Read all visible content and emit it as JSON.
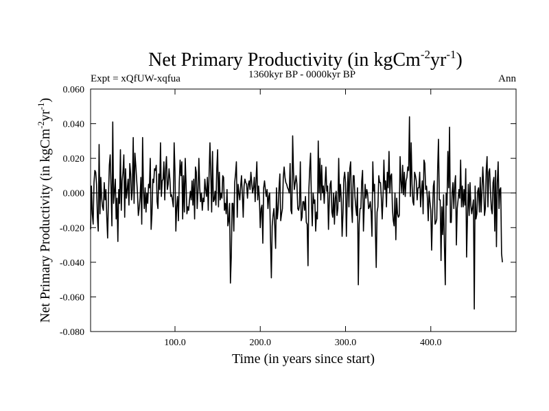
{
  "header": {
    "title_main": "Net Primary Productivity (in kgCm",
    "title_sup1": "-2",
    "title_mid": "yr",
    "title_sup2": "-1",
    "title_end": ")",
    "experiment": "Expt = xQfUW-xqfua",
    "period": "1360kyr BP - 0000kyr BP",
    "season": "Ann"
  },
  "chart_data": {
    "type": "line",
    "title": "Net Primary Productivity (in kgCm-2yr-1)",
    "xlabel": "Time (in years since start)",
    "ylabel_main": "Net Primary Productivity (in kgCm",
    "ylabel_sup1": "-2",
    "ylabel_mid": "yr",
    "ylabel_sup2": "-1",
    "ylabel_end": ")",
    "xlim": [
      1,
      500
    ],
    "ylim": [
      -0.08,
      0.06
    ],
    "xticks": [
      100,
      200,
      300,
      400
    ],
    "xtick_labels": [
      "100.0",
      "200.0",
      "300.0",
      "400.0"
    ],
    "yticks": [
      -0.08,
      -0.06,
      -0.04,
      -0.02,
      0.0,
      0.02,
      0.04,
      0.06
    ],
    "ytick_labels": [
      "-0.080",
      "-0.060",
      "-0.040",
      "-0.020",
      "0.000",
      "0.020",
      "0.040",
      "0.060"
    ],
    "zero_line": 0,
    "series": [
      {
        "name": "Net Primary Productivity",
        "x_start": 1,
        "x_step": 1,
        "values": [
          -0.021,
          0.004,
          -0.012,
          -0.018,
          0.006,
          0.013,
          0.012,
          0.005,
          -0.014,
          -0.022,
          0.028,
          -0.012,
          0.009,
          -0.003,
          -0.008,
          -0.01,
          0.006,
          -0.004,
          0.002,
          -0.014,
          -0.026,
          -0.002,
          0.016,
          0.022,
          0.003,
          -0.019,
          0.041,
          -0.006,
          0.001,
          0.008,
          -0.015,
          -0.003,
          -0.028,
          0.002,
          -0.006,
          0.025,
          -0.01,
          0.007,
          0.012,
          0.022,
          -0.014,
          0.014,
          -0.003,
          0.002,
          0.008,
          -0.007,
          0.017,
          0.011,
          -0.004,
          0.002,
          0.032,
          -0.006,
          0.023,
          0.016,
          0.008,
          0.0,
          -0.013,
          -0.009,
          -0.003,
          0.009,
          -0.018,
          0.032,
          0.002,
          -0.009,
          0.003,
          -0.011,
          0.0,
          -0.006,
          0.005,
          0.003,
          0.02,
          -0.021,
          -0.012,
          0.008,
          0.006,
          0.014,
          0.013,
          0.016,
          -0.005,
          -0.009,
          0.011,
          0.002,
          0.029,
          -0.002,
          0.007,
          0.008,
          0.018,
          -0.004,
          0.014,
          0.021,
          0.002,
          0.005,
          0.014,
          0.008,
          -0.002,
          -0.001,
          -0.004,
          -0.008,
          0.029,
          0.012,
          -0.022,
          -0.008,
          -0.002,
          -0.016,
          0.006,
          0.019,
          0.01,
          0.018,
          -0.015,
          0.01,
          -0.011,
          0.02,
          0.005,
          -0.012,
          -0.008,
          -0.01,
          -0.004,
          0.001,
          -0.004,
          0.007,
          -0.007,
          0.008,
          -0.015,
          0.015,
          0.012,
          -0.009,
          0.001,
          0.02,
          0.003,
          -0.005,
          0.0,
          -0.01,
          -0.003,
          -0.005,
          0.008,
          0.002,
          -0.002,
          0.009,
          -0.01,
          0.011,
          0.029,
          0.011,
          -0.011,
          0.024,
          -0.005,
          -0.004,
          0.001,
          -0.007,
          0.014,
          0.025,
          -0.008,
          0.012,
          -0.004,
          0.0,
          -0.003,
          0.01,
          0.009,
          -0.01,
          -0.006,
          -0.012,
          0.002,
          -0.019,
          -0.016,
          -0.006,
          -0.052,
          -0.037,
          -0.006,
          -0.006,
          -0.022,
          0.006,
          0.011,
          0.018,
          -0.014,
          0.005,
          -0.0,
          -0.004,
          0.004,
          0.01,
          -0.001,
          -0.014,
          0.004,
          0.008,
          0.006,
          0.005,
          -0.003,
          0.005,
          0.007,
          0.002,
          0.012,
          0.006,
          -0.0,
          0.003,
          0.009,
          -0.005,
          0.007,
          0.018,
          -0.004,
          0.004,
          -0.003,
          -0.02,
          -0.009,
          -0.007,
          -0.029,
          0.003,
          0.007,
          0.002,
          -0.002,
          0.002,
          -0.009,
          -0.002,
          0.0,
          -0.027,
          -0.049,
          -0.019,
          -0.013,
          -0.009,
          -0.019,
          -0.032,
          0.003,
          -0.015,
          -0.009,
          0.003,
          0.011,
          -0.016,
          -0.012,
          -0.009,
          0.009,
          0.015,
          0.009,
          0.006,
          0.005,
          0.003,
          0.002,
          -0.0,
          0.017,
          -0.01,
          -0.012,
          0.033,
          0.012,
          0.002,
          0.006,
          0.01,
          0.005,
          -0.009,
          -0.01,
          -0.007,
          0.018,
          -0.016,
          -0.014,
          -0.005,
          -0.005,
          -0.01,
          -0.002,
          -0.017,
          -0.018,
          -0.042,
          0.002,
          0.014,
          0.023,
          -0.005,
          -0.019,
          -0.0,
          -0.006,
          -0.004,
          -0.022,
          -0.011,
          -0.015,
          0.03,
          0.0,
          0.02,
          -0.004,
          0.016,
          -0.0,
          0.004,
          -0.006,
          0.005,
          0.015,
          0.001,
          0.004,
          -0.021,
          -0.004,
          0.005,
          0.007,
          -0.011,
          -0.014,
          -0.0,
          -0.018,
          -0.003,
          0.001,
          -0.013,
          -0.009,
          0.02,
          -0.005,
          0.005,
          -0.003,
          -0.025,
          -0.012,
          0.008,
          0.012,
          0.006,
          -0.025,
          -0.001,
          0.012,
          -0.008,
          0.014,
          0.018,
          -0.008,
          -0.017,
          0.01,
          0.01,
          -0.002,
          -0.008,
          -0.013,
          0.003,
          -0.053,
          -0.018,
          -0.009,
          -0.009,
          0.007,
          0.013,
          -0.022,
          -0.007,
          0.005,
          -0.003,
          0.002,
          -0.001,
          -0.009,
          -0.008,
          -0.005,
          -0.011,
          -0.025,
          0.018,
          0.001,
          0.005,
          -0.021,
          -0.043,
          -0.011,
          -0.008,
          0.01,
          0.006,
          0.006,
          -0.003,
          -0.015,
          -0.002,
          0.019,
          0.002,
          0.007,
          -0.008,
          0.012,
          0.003,
          0.024,
          -0.0,
          0.01,
          0.011,
          -0.009,
          -0.016,
          -0.019,
          -0.0,
          -0.027,
          -0.003,
          -0.012,
          -0.014,
          -0.013,
          0.021,
          0.007,
          0.0,
          0.016,
          -0.001,
          0.012,
          -0.002,
          0.007,
          0.009,
          0.015,
          0.013,
          0.044,
          -0.002,
          0.029,
          0.005,
          -0.005,
          -0.007,
          0.012,
          0.01,
          0.007,
          -0.004,
          0.003,
          0.003,
          0.012,
          -0.008,
          0.001,
          0.007,
          -0.012,
          0.019,
          0.017,
          0.002,
          0.004,
          -0.003,
          -0.016,
          0.001,
          -0.005,
          -0.01,
          -0.033,
          -0.013,
          0.004,
          0.007,
          -0.018,
          -0.017,
          -0.015,
          0.013,
          0.031,
          -0.004,
          -0.004,
          -0.039,
          -0.008,
          -0.024,
          -0.001,
          -0.031,
          -0.053,
          0.0,
          -0.007,
          0.024,
          0.003,
          0.038,
          -0.017,
          -0.017,
          -0.0,
          0.006,
          -0.009,
          0.005,
          0.01,
          -0.03,
          -0.009,
          -0.004,
          0.002,
          -0.003,
          0.019,
          -0.008,
          0.004,
          -0.008,
          0.002,
          -0.007,
          0.014,
          -0.037,
          -0.014,
          0.005,
          -0.013,
          0.006,
          -0.007,
          -0.012,
          -0.008,
          -0.004,
          -0.067,
          0.004,
          -0.015,
          -0.012,
          0.001,
          0.003,
          -0.011,
          0.009,
          -0.011,
          0.001,
          0.015,
          0.004,
          -0.013,
          -0.009,
          0.013,
          0.021,
          -0.008,
          0.012,
          0.014,
          0.001,
          -0.009,
          -0.012,
          0.006,
          0.009,
          -0.022,
          0.013,
          -0.031,
          0.006,
          0.018,
          -0.009,
          0.002,
          0.003,
          -0.035,
          -0.04
        ]
      }
    ]
  }
}
